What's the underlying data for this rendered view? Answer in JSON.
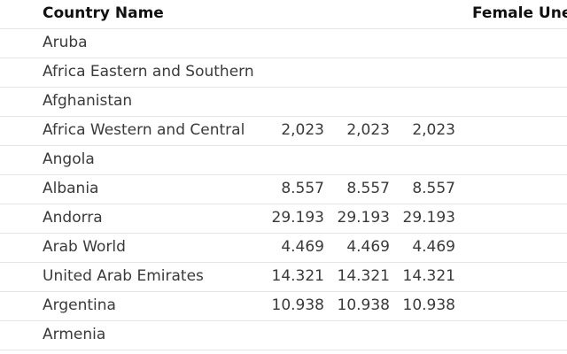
{
  "table": {
    "header": [
      "Country Name",
      "Female Une"
    ],
    "rows": [
      {
        "name": "Aruba"
      },
      {
        "name": "Africa Eastern and Southern"
      },
      {
        "name": "Afghanistan"
      },
      {
        "name": "Africa Western and Central",
        "values": [
          "2,023",
          "2,023",
          "2,023"
        ]
      },
      {
        "name": "Angola"
      },
      {
        "name": "Albania",
        "values": [
          "8.557",
          "8.557",
          "8.557"
        ]
      },
      {
        "name": "Andorra",
        "values": [
          "29.193",
          "29.193",
          "29.193"
        ]
      },
      {
        "name": "Arab World",
        "values": [
          "4.469",
          "4.469",
          "4.469"
        ]
      },
      {
        "name": "United Arab Emirates",
        "values": [
          "14.321",
          "14.321",
          "14.321"
        ]
      },
      {
        "name": "Argentina",
        "values": [
          "10.938",
          "10.938",
          "10.938"
        ]
      },
      {
        "name": "Armenia"
      }
    ]
  }
}
